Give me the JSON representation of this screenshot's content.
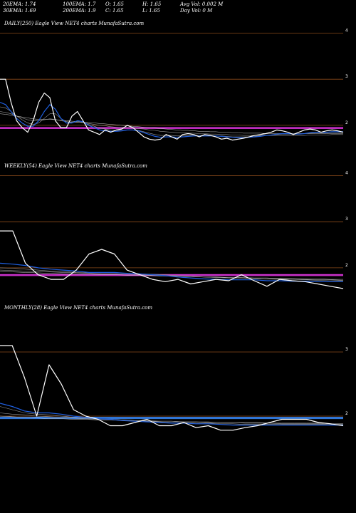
{
  "header": {
    "ema20": "20EMA: 1.74",
    "ema100": "100EMA: 1.7",
    "open": "O: 1.65",
    "high": "H: 1.65",
    "avg_vol": "Avg Vol: 0.002  M",
    "ema30": "30EMA: 1.69",
    "ema200": "200EMA: 1.9",
    "close": "C: 1.65",
    "low": "L: 1.65",
    "day_vol": "Day Vol: 0  M"
  },
  "colors": {
    "background": "#000000",
    "price": "#ffffff",
    "ema": "#1f5fe0",
    "support": "#d633d6",
    "support_blue": "#3a8cff",
    "grid": "#8a4a1a",
    "ema_slow": "#9a9a9a"
  },
  "chart_data": [
    {
      "type": "line",
      "label": "DAILY(250) Eagle  View  NET4  charts MunafaSutra.com",
      "ylim": [
        1.55,
        4.1
      ],
      "yticks": [
        4,
        3,
        2
      ],
      "grid": true,
      "support": [
        1.95,
        1.93
      ],
      "x": [
        0,
        4,
        8,
        12,
        16,
        20,
        24,
        28,
        32,
        36,
        40,
        44,
        48,
        52,
        56,
        60,
        64,
        68,
        72,
        76,
        80,
        84,
        88,
        92,
        96,
        100,
        104,
        108,
        112,
        116,
        120,
        124,
        128,
        132,
        136,
        140,
        144,
        148,
        152,
        156,
        160,
        164,
        168,
        172,
        176,
        180,
        184,
        188,
        192,
        196,
        200,
        204,
        208,
        212,
        216,
        220,
        224,
        228,
        232,
        236,
        240,
        244,
        248
      ],
      "series": [
        {
          "name": "Price",
          "values": [
            3.0,
            3.0,
            2.5,
            2.1,
            1.95,
            1.85,
            2.1,
            2.5,
            2.7,
            2.6,
            2.1,
            1.95,
            1.95,
            2.2,
            2.3,
            2.1,
            1.9,
            1.85,
            1.8,
            1.9,
            1.85,
            1.9,
            1.92,
            2.0,
            1.95,
            1.85,
            1.75,
            1.7,
            1.68,
            1.7,
            1.8,
            1.75,
            1.7,
            1.8,
            1.82,
            1.8,
            1.75,
            1.8,
            1.78,
            1.75,
            1.7,
            1.72,
            1.68,
            1.7,
            1.72,
            1.75,
            1.78,
            1.8,
            1.82,
            1.85,
            1.9,
            1.88,
            1.85,
            1.8,
            1.85,
            1.9,
            1.92,
            1.9,
            1.85,
            1.88,
            1.9,
            1.88,
            1.85
          ]
        },
        {
          "name": "20EMA",
          "values": [
            2.5,
            2.45,
            2.3,
            2.15,
            2.05,
            1.98,
            1.98,
            2.1,
            2.3,
            2.45,
            2.35,
            2.15,
            2.05,
            2.05,
            2.1,
            2.08,
            2.0,
            1.95,
            1.9,
            1.88,
            1.87,
            1.87,
            1.88,
            1.9,
            1.9,
            1.88,
            1.84,
            1.8,
            1.76,
            1.74,
            1.75,
            1.75,
            1.74,
            1.75,
            1.76,
            1.77,
            1.77,
            1.77,
            1.77,
            1.77,
            1.76,
            1.75,
            1.74,
            1.73,
            1.73,
            1.74,
            1.75,
            1.76,
            1.78,
            1.79,
            1.81,
            1.82,
            1.82,
            1.81,
            1.81,
            1.82,
            1.84,
            1.85,
            1.85,
            1.85,
            1.86,
            1.86,
            1.86
          ]
        },
        {
          "name": "30EMA",
          "values": [
            2.4,
            2.38,
            2.3,
            2.2,
            2.12,
            2.05,
            2.02,
            2.05,
            2.15,
            2.25,
            2.25,
            2.15,
            2.08,
            2.06,
            2.07,
            2.06,
            2.02,
            1.98,
            1.94,
            1.92,
            1.9,
            1.89,
            1.89,
            1.9,
            1.9,
            1.89,
            1.86,
            1.83,
            1.8,
            1.78,
            1.78,
            1.78,
            1.77,
            1.77,
            1.78,
            1.78,
            1.78,
            1.78,
            1.78,
            1.77,
            1.77,
            1.76,
            1.75,
            1.75,
            1.75,
            1.75,
            1.76,
            1.77,
            1.78,
            1.79,
            1.8,
            1.81,
            1.81,
            1.81,
            1.81,
            1.82,
            1.83,
            1.84,
            1.84,
            1.84,
            1.85,
            1.85,
            1.85
          ]
        },
        {
          "name": "100EMA",
          "values": [
            2.3,
            2.28,
            2.25,
            2.2,
            2.16,
            2.12,
            2.1,
            2.1,
            2.12,
            2.14,
            2.13,
            2.1,
            2.08,
            2.07,
            2.07,
            2.06,
            2.04,
            2.02,
            2.0,
            1.99,
            1.97,
            1.96,
            1.95,
            1.95,
            1.94,
            1.93,
            1.92,
            1.9,
            1.89,
            1.87,
            1.86,
            1.85,
            1.84,
            1.84,
            1.83,
            1.83,
            1.82,
            1.82,
            1.81,
            1.81,
            1.8,
            1.8,
            1.79,
            1.79,
            1.78,
            1.78,
            1.78,
            1.78,
            1.78,
            1.78,
            1.78,
            1.78,
            1.78,
            1.78,
            1.78,
            1.78,
            1.79,
            1.79,
            1.79,
            1.79,
            1.8,
            1.8,
            1.8
          ]
        },
        {
          "name": "200EMA",
          "values": [
            2.25,
            2.24,
            2.22,
            2.2,
            2.18,
            2.16,
            2.14,
            2.13,
            2.13,
            2.13,
            2.12,
            2.11,
            2.1,
            2.09,
            2.08,
            2.07,
            2.06,
            2.05,
            2.04,
            2.03,
            2.02,
            2.01,
            2.0,
            1.99,
            1.98,
            1.97,
            1.96,
            1.95,
            1.94,
            1.93,
            1.92,
            1.91,
            1.9,
            1.89,
            1.89,
            1.88,
            1.87,
            1.87,
            1.86,
            1.86,
            1.85,
            1.85,
            1.84,
            1.84,
            1.83,
            1.83,
            1.83,
            1.83,
            1.82,
            1.82,
            1.82,
            1.82,
            1.82,
            1.82,
            1.82,
            1.82,
            1.82,
            1.82,
            1.82,
            1.82,
            1.82,
            1.82,
            1.82
          ]
        }
      ]
    },
    {
      "type": "line",
      "label": "WEEKLY(54) Eagle  View  NET4  charts MunafaSutra.com",
      "ylim": [
        1.55,
        4.1
      ],
      "yticks": [
        4,
        3,
        2
      ],
      "grid": true,
      "support": [
        1.85,
        1.83
      ],
      "x": [
        0,
        2,
        4,
        6,
        8,
        10,
        12,
        14,
        16,
        18,
        20,
        22,
        24,
        26,
        28,
        30,
        32,
        34,
        36,
        38,
        40,
        42,
        44,
        46,
        48,
        50,
        52,
        54
      ],
      "series": [
        {
          "name": "Price",
          "values": [
            2.8,
            2.8,
            2.1,
            1.85,
            1.75,
            1.75,
            1.95,
            2.3,
            2.4,
            2.3,
            1.95,
            1.85,
            1.75,
            1.7,
            1.75,
            1.65,
            1.7,
            1.75,
            1.72,
            1.85,
            1.72,
            1.6,
            1.75,
            1.72,
            1.7,
            1.65,
            1.6,
            1.55
          ]
        },
        {
          "name": "20EMA",
          "values": [
            2.1,
            2.08,
            2.05,
            2.0,
            1.97,
            1.95,
            1.93,
            1.9,
            1.9,
            1.9,
            1.88,
            1.87,
            1.85,
            1.83,
            1.8,
            1.78,
            1.76,
            1.75,
            1.74,
            1.74,
            1.74,
            1.72,
            1.72,
            1.71,
            1.71,
            1.7,
            1.7,
            1.7
          ]
        },
        {
          "name": "30EMA",
          "values": [
            2.0,
            1.99,
            1.97,
            1.95,
            1.93,
            1.92,
            1.9,
            1.89,
            1.89,
            1.89,
            1.88,
            1.87,
            1.86,
            1.85,
            1.83,
            1.82,
            1.8,
            1.79,
            1.78,
            1.78,
            1.77,
            1.76,
            1.75,
            1.75,
            1.74,
            1.73,
            1.72,
            1.72
          ]
        },
        {
          "name": "100EMA",
          "values": [
            1.95,
            1.94,
            1.93,
            1.92,
            1.91,
            1.9,
            1.89,
            1.88,
            1.87,
            1.87,
            1.86,
            1.85,
            1.84,
            1.83,
            1.82,
            1.81,
            1.8,
            1.79,
            1.78,
            1.78,
            1.77,
            1.76,
            1.76,
            1.75,
            1.75,
            1.74,
            1.74,
            1.73
          ]
        },
        {
          "name": "200EMA",
          "values": [
            1.92,
            1.91,
            1.9,
            1.89,
            1.88,
            1.87,
            1.86,
            1.86,
            1.85,
            1.85,
            1.84,
            1.84,
            1.83,
            1.82,
            1.82,
            1.81,
            1.8,
            1.8,
            1.79,
            1.79,
            1.78,
            1.78,
            1.77,
            1.77,
            1.76,
            1.76,
            1.75,
            1.75
          ]
        }
      ]
    },
    {
      "type": "line",
      "label": "MONTHLY(28) Eagle  View  NET4  charts MunafaSutra.com",
      "ylim": [
        1.6,
        3.6
      ],
      "yticks": [
        3,
        2
      ],
      "grid": true,
      "support": [
        1.98,
        1.96
      ],
      "x": [
        0,
        1,
        2,
        3,
        4,
        5,
        6,
        7,
        8,
        9,
        10,
        11,
        12,
        13,
        14,
        15,
        16,
        17,
        18,
        19,
        20,
        21,
        22,
        23,
        24,
        25,
        26,
        27,
        28
      ],
      "series": [
        {
          "name": "Price",
          "values": [
            3.1,
            3.1,
            2.6,
            2.0,
            2.8,
            2.5,
            2.1,
            2.0,
            1.95,
            1.85,
            1.85,
            1.9,
            1.95,
            1.85,
            1.85,
            1.9,
            1.82,
            1.85,
            1.78,
            1.78,
            1.82,
            1.85,
            1.9,
            1.95,
            1.95,
            1.95,
            1.9,
            1.88,
            1.85
          ]
        },
        {
          "name": "20EMA",
          "values": [
            2.2,
            2.15,
            2.08,
            2.05,
            2.05,
            2.03,
            2.0,
            1.98,
            1.96,
            1.95,
            1.93,
            1.92,
            1.91,
            1.9,
            1.89,
            1.89,
            1.88,
            1.88,
            1.87,
            1.86,
            1.86,
            1.86,
            1.86,
            1.86,
            1.86,
            1.86,
            1.86,
            1.86,
            1.86
          ]
        },
        {
          "name": "30EMA",
          "values": [
            2.15,
            2.1,
            2.05,
            2.03,
            2.02,
            2.0,
            1.98,
            1.97,
            1.96,
            1.95,
            1.94,
            1.93,
            1.92,
            1.91,
            1.9,
            1.9,
            1.89,
            1.89,
            1.88,
            1.88,
            1.87,
            1.87,
            1.87,
            1.87,
            1.87,
            1.87,
            1.87,
            1.86,
            1.86
          ]
        },
        {
          "name": "100EMA",
          "values": [
            2.05,
            2.03,
            2.02,
            2.0,
            1.99,
            1.98,
            1.97,
            1.96,
            1.95,
            1.95,
            1.94,
            1.93,
            1.93,
            1.92,
            1.92,
            1.91,
            1.91,
            1.9,
            1.9,
            1.9,
            1.89,
            1.89,
            1.89,
            1.88,
            1.88,
            1.88,
            1.88,
            1.87,
            1.87
          ]
        },
        {
          "name": "200EMA",
          "values": [
            2.0,
            1.99,
            1.98,
            1.97,
            1.96,
            1.96,
            1.95,
            1.95,
            1.94,
            1.94,
            1.93,
            1.93,
            1.92,
            1.92,
            1.92,
            1.91,
            1.91,
            1.91,
            1.9,
            1.9,
            1.9,
            1.9,
            1.89,
            1.89,
            1.89,
            1.89,
            1.89,
            1.88,
            1.88
          ]
        }
      ]
    }
  ]
}
